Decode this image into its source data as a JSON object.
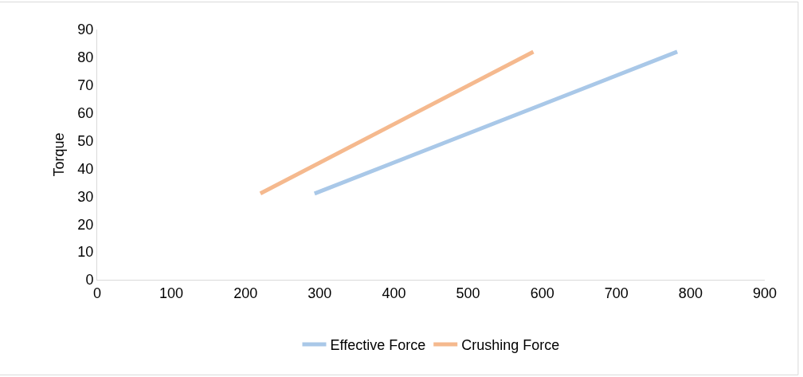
{
  "chart_data": {
    "type": "line",
    "ylabel": "Torque",
    "xlim": [
      0,
      900
    ],
    "xticks": [
      0,
      100,
      200,
      300,
      400,
      500,
      600,
      700,
      800,
      900
    ],
    "ylim": [
      0,
      90
    ],
    "yticks": [
      0,
      10,
      20,
      30,
      40,
      50,
      60,
      70,
      80,
      90
    ],
    "legend": "bottom",
    "marker": "none",
    "line_style": "solid",
    "series": [
      {
        "name": "Effective Force",
        "color": "#a9c8e8",
        "x": [
          293,
          782
        ],
        "values": [
          31,
          82
        ]
      },
      {
        "name": "Crushing Force",
        "color": "#f5b98e",
        "x": [
          220,
          588
        ],
        "values": [
          31,
          82
        ]
      }
    ]
  }
}
